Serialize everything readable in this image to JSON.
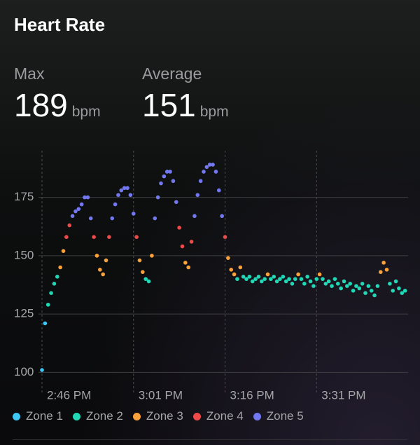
{
  "header": {
    "title": "Heart Rate"
  },
  "stats": [
    {
      "label": "Max",
      "value": 189,
      "unit": "bpm"
    },
    {
      "label": "Average",
      "value": 151,
      "unit": "bpm"
    }
  ],
  "chart_data": {
    "type": "scatter",
    "xlim": [
      886,
      946
    ],
    "ylim": [
      98,
      195
    ],
    "xticks": [
      {
        "value": 886,
        "label": "2:46 PM"
      },
      {
        "value": 901,
        "label": "3:01 PM"
      },
      {
        "value": 916,
        "label": "3:16 PM"
      },
      {
        "value": 931,
        "label": "3:31 PM"
      }
    ],
    "yticks": [
      100,
      125,
      150,
      175
    ],
    "grid": true,
    "series": [
      {
        "name": "Zone 1",
        "color": "#3ec7f2",
        "x": [
          886.0,
          886.5
        ],
        "values": [
          101,
          121
        ]
      },
      {
        "name": "Zone 2",
        "color": "#20d8b5",
        "x": [
          887.0,
          887.5,
          888.0,
          888.5,
          903.0,
          903.5,
          918.0,
          919.0,
          919.5,
          920.0,
          920.5,
          921.0,
          921.5,
          922.0,
          922.5,
          923.5,
          924.0,
          924.5,
          925.0,
          925.5,
          926.0,
          926.5,
          927.0,
          927.5,
          928.5,
          929.0,
          929.5,
          930.0,
          930.5,
          931.0,
          932.0,
          932.5,
          933.0,
          933.5,
          934.0,
          934.5,
          935.0,
          935.5,
          936.0,
          936.5,
          937.0,
          937.5,
          938.0,
          938.5,
          939.0,
          939.5,
          940.0,
          940.5,
          941.0,
          943.0,
          943.5,
          944.0,
          944.5,
          945.0,
          945.5
        ],
        "values": [
          129,
          134,
          138,
          141,
          140,
          139,
          140,
          141,
          140,
          141,
          139,
          140,
          141,
          139,
          140,
          140,
          141,
          139,
          140,
          141,
          139,
          140,
          138,
          140,
          140,
          138,
          141,
          139,
          137,
          140,
          140,
          138,
          139,
          137,
          140,
          138,
          136,
          139,
          137,
          138,
          135,
          137,
          136,
          138,
          134,
          137,
          135,
          133,
          137,
          138,
          135,
          139,
          136,
          134,
          135
        ]
      },
      {
        "name": "Zone 3",
        "color": "#f9a13a",
        "x": [
          889.0,
          889.5,
          895.0,
          895.5,
          896.0,
          896.5,
          902.0,
          902.5,
          904.0,
          909.5,
          910.0,
          916.5,
          917.0,
          917.5,
          918.5,
          923.0,
          928.0,
          931.5,
          941.5,
          942.0,
          942.5
        ],
        "values": [
          145,
          152,
          150,
          144,
          142,
          148,
          148,
          143,
          150,
          147,
          145,
          149,
          144,
          142,
          145,
          142,
          142,
          142,
          143,
          147,
          144
        ]
      },
      {
        "name": "Zone 4",
        "color": "#ef4a4a",
        "x": [
          890.0,
          890.5,
          894.5,
          897.0,
          901.5,
          908.5,
          909.0,
          910.5,
          916.0
        ],
        "values": [
          158,
          163,
          158,
          158,
          158,
          162,
          154,
          156,
          158
        ]
      },
      {
        "name": "Zone 5",
        "color": "#7378f0",
        "x": [
          891.0,
          891.5,
          892.0,
          892.5,
          893.0,
          893.5,
          894.0,
          897.5,
          898.0,
          898.5,
          899.0,
          899.5,
          900.0,
          900.5,
          901.0,
          904.5,
          905.0,
          905.5,
          906.0,
          906.5,
          907.0,
          907.5,
          908.0,
          911.0,
          911.5,
          912.0,
          912.5,
          913.0,
          913.5,
          914.0,
          914.5,
          915.0,
          915.5
        ],
        "values": [
          167,
          169,
          170,
          172,
          175,
          175,
          166,
          166,
          172,
          176,
          178,
          179,
          179,
          176,
          168,
          166,
          175,
          181,
          184,
          186,
          186,
          182,
          173,
          167,
          176,
          182,
          186,
          188,
          189,
          189,
          186,
          178,
          167
        ]
      }
    ]
  }
}
